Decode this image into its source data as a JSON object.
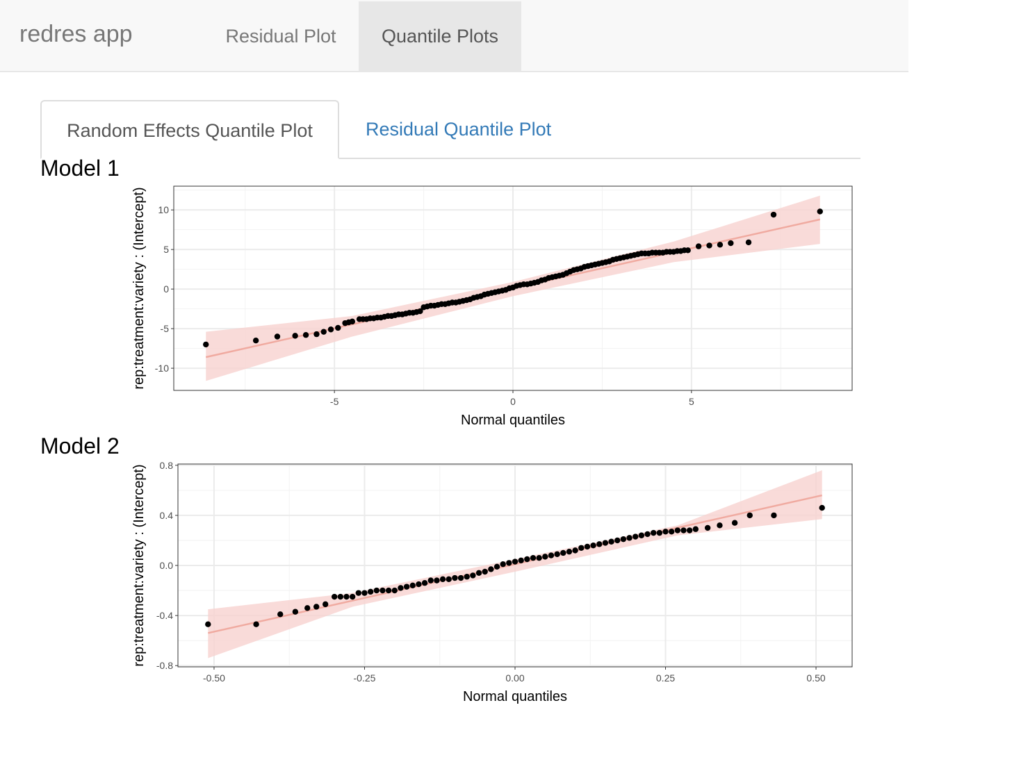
{
  "navbar": {
    "brand": "redres app",
    "items": [
      {
        "label": "Residual Plot",
        "active": false
      },
      {
        "label": "Quantile Plots",
        "active": true
      }
    ]
  },
  "tabs": [
    {
      "label": "Random Effects Quantile Plot",
      "active": true
    },
    {
      "label": "Residual Quantile Plot",
      "active": false
    }
  ],
  "models": [
    {
      "label": "Model 1"
    },
    {
      "label": "Model 2"
    }
  ],
  "chart_data": [
    {
      "type": "scatter",
      "title": "",
      "xlabel": "Normal quantiles",
      "ylabel": "rep:treatment:variety :  (Intercept)",
      "xlim": [
        -9.5,
        9.5
      ],
      "ylim": [
        -12.8,
        13
      ],
      "xticks": [
        -5,
        0,
        5
      ],
      "xtick_labels": [
        "-5",
        "0",
        "5"
      ],
      "yticks": [
        10,
        5,
        0,
        -5,
        -10
      ],
      "ytick_labels": [
        "10",
        "5",
        "0",
        "-5",
        "-10"
      ],
      "grid": true,
      "reference_line": {
        "x": [
          -8.6,
          8.6
        ],
        "y": [
          -8.6,
          8.8
        ],
        "color": "#f0aaa0"
      },
      "band": {
        "x": [
          -8.6,
          -4.5,
          0,
          4.5,
          8.6
        ],
        "lower": [
          -11.6,
          -6.0,
          -0.9,
          3.4,
          5.7
        ],
        "upper": [
          -5.4,
          -3.4,
          0.9,
          6.0,
          11.8
        ],
        "color": "#f8d2d0"
      },
      "points": {
        "x": [
          -8.6,
          -7.2,
          -6.6,
          -6.1,
          -5.8,
          -5.5,
          -5.3,
          -5.1,
          -4.9,
          -4.7,
          -4.6,
          -4.5,
          -4.3,
          -4.2,
          -4.1,
          -4.0,
          -3.9,
          -3.8,
          -3.7,
          -3.6,
          -3.5,
          -3.4,
          -3.3,
          -3.2,
          -3.1,
          -3.0,
          -2.9,
          -2.8,
          -2.7,
          -2.6,
          -2.5,
          -2.4,
          -2.3,
          -2.2,
          -2.1,
          -2.0,
          -1.9,
          -1.8,
          -1.7,
          -1.6,
          -1.5,
          -1.4,
          -1.3,
          -1.2,
          -1.1,
          -1.0,
          -0.9,
          -0.8,
          -0.7,
          -0.6,
          -0.5,
          -0.4,
          -0.3,
          -0.2,
          -0.1,
          0.0,
          0.1,
          0.2,
          0.3,
          0.4,
          0.5,
          0.6,
          0.7,
          0.8,
          0.9,
          1.0,
          1.1,
          1.2,
          1.3,
          1.4,
          1.5,
          1.6,
          1.7,
          1.8,
          1.9,
          2.0,
          2.1,
          2.2,
          2.3,
          2.4,
          2.5,
          2.6,
          2.7,
          2.8,
          2.9,
          3.0,
          3.1,
          3.2,
          3.3,
          3.4,
          3.5,
          3.6,
          3.7,
          3.8,
          3.9,
          4.0,
          4.1,
          4.2,
          4.3,
          4.4,
          4.5,
          4.6,
          4.7,
          4.8,
          4.9,
          5.2,
          5.5,
          5.8,
          6.1,
          6.6,
          7.3,
          8.6
        ],
        "y": [
          -7.0,
          -6.5,
          -6.0,
          -5.9,
          -5.8,
          -5.7,
          -5.4,
          -5.1,
          -4.9,
          -4.3,
          -4.2,
          -4.1,
          -3.8,
          -3.8,
          -3.8,
          -3.7,
          -3.7,
          -3.6,
          -3.6,
          -3.5,
          -3.4,
          -3.4,
          -3.3,
          -3.2,
          -3.2,
          -3.1,
          -3.0,
          -3.0,
          -2.9,
          -2.8,
          -2.3,
          -2.2,
          -2.1,
          -2.1,
          -2.0,
          -1.9,
          -1.9,
          -1.8,
          -1.7,
          -1.7,
          -1.6,
          -1.5,
          -1.4,
          -1.3,
          -1.1,
          -1.0,
          -0.9,
          -0.7,
          -0.6,
          -0.5,
          -0.4,
          -0.3,
          -0.2,
          -0.1,
          0.1,
          0.2,
          0.4,
          0.5,
          0.6,
          0.6,
          0.7,
          0.8,
          0.9,
          1.1,
          1.2,
          1.4,
          1.5,
          1.6,
          1.7,
          1.8,
          2.0,
          2.2,
          2.4,
          2.5,
          2.6,
          2.8,
          2.9,
          3.0,
          3.1,
          3.2,
          3.3,
          3.4,
          3.5,
          3.7,
          3.8,
          3.9,
          4.0,
          4.1,
          4.2,
          4.3,
          4.4,
          4.5,
          4.5,
          4.5,
          4.6,
          4.6,
          4.6,
          4.6,
          4.7,
          4.7,
          4.7,
          4.8,
          4.8,
          4.9,
          4.9,
          5.4,
          5.5,
          5.6,
          5.8,
          5.9,
          9.4,
          9.8
        ]
      }
    },
    {
      "type": "scatter",
      "title": "",
      "xlabel": "Normal quantiles",
      "ylabel": "rep:treatment:variety :  (Intercept)",
      "xlim": [
        -0.56,
        0.56
      ],
      "ylim": [
        -0.81,
        0.81
      ],
      "xticks": [
        -0.5,
        -0.25,
        0.0,
        0.25,
        0.5
      ],
      "xtick_labels": [
        "-0.50",
        "-0.25",
        "0.00",
        "0.25",
        "0.50"
      ],
      "yticks": [
        0.8,
        0.4,
        0.0,
        -0.4,
        -0.8
      ],
      "ytick_labels": [
        "0.8",
        "0.4",
        "0.0",
        "-0.4",
        "-0.8"
      ],
      "grid": true,
      "reference_line": {
        "x": [
          -0.51,
          0.51
        ],
        "y": [
          -0.54,
          0.56
        ],
        "color": "#f0aaa0"
      },
      "band": {
        "x": [
          -0.51,
          -0.27,
          0,
          0.27,
          0.51
        ],
        "lower": [
          -0.74,
          -0.33,
          -0.05,
          0.24,
          0.37
        ],
        "upper": [
          -0.35,
          -0.22,
          0.05,
          0.32,
          0.76
        ],
        "color": "#f8d2d0"
      },
      "points": {
        "x": [
          -0.51,
          -0.43,
          -0.39,
          -0.365,
          -0.345,
          -0.33,
          -0.315,
          -0.3,
          -0.29,
          -0.28,
          -0.27,
          -0.26,
          -0.25,
          -0.24,
          -0.23,
          -0.22,
          -0.21,
          -0.2,
          -0.19,
          -0.18,
          -0.17,
          -0.16,
          -0.15,
          -0.14,
          -0.13,
          -0.12,
          -0.11,
          -0.1,
          -0.09,
          -0.08,
          -0.07,
          -0.06,
          -0.05,
          -0.04,
          -0.03,
          -0.02,
          -0.01,
          0.0,
          0.01,
          0.02,
          0.03,
          0.04,
          0.05,
          0.06,
          0.07,
          0.08,
          0.09,
          0.1,
          0.11,
          0.12,
          0.13,
          0.14,
          0.15,
          0.16,
          0.17,
          0.18,
          0.19,
          0.2,
          0.21,
          0.22,
          0.23,
          0.24,
          0.25,
          0.26,
          0.27,
          0.28,
          0.29,
          0.3,
          0.32,
          0.34,
          0.365,
          0.39,
          0.43,
          0.51
        ],
        "y": [
          -0.47,
          -0.47,
          -0.39,
          -0.37,
          -0.34,
          -0.33,
          -0.31,
          -0.25,
          -0.25,
          -0.25,
          -0.25,
          -0.22,
          -0.22,
          -0.21,
          -0.2,
          -0.2,
          -0.2,
          -0.2,
          -0.18,
          -0.17,
          -0.16,
          -0.15,
          -0.14,
          -0.12,
          -0.12,
          -0.11,
          -0.11,
          -0.1,
          -0.1,
          -0.09,
          -0.08,
          -0.06,
          -0.05,
          -0.03,
          -0.01,
          0.01,
          0.02,
          0.03,
          0.04,
          0.05,
          0.06,
          0.06,
          0.07,
          0.08,
          0.09,
          0.1,
          0.11,
          0.12,
          0.14,
          0.15,
          0.16,
          0.17,
          0.18,
          0.19,
          0.2,
          0.21,
          0.22,
          0.23,
          0.24,
          0.25,
          0.26,
          0.26,
          0.27,
          0.27,
          0.28,
          0.28,
          0.28,
          0.29,
          0.3,
          0.32,
          0.34,
          0.4,
          0.4,
          0.46
        ]
      }
    }
  ]
}
